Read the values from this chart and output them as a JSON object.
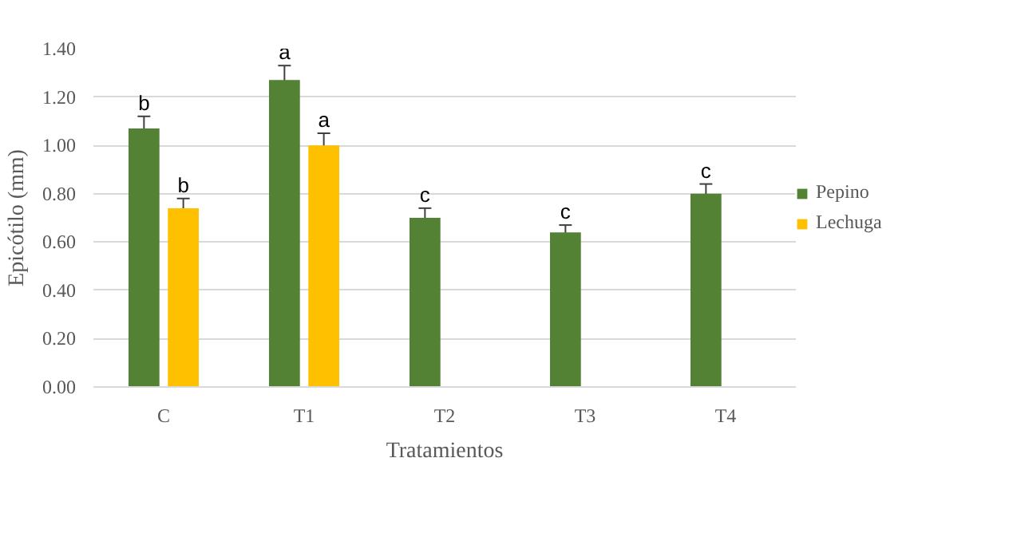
{
  "chart_data": {
    "type": "bar",
    "xlabel": "Tratamientos",
    "ylabel": "Epicótilo (mm)",
    "categories": [
      "C",
      "T1",
      "T2",
      "T3",
      "T4"
    ],
    "series": [
      {
        "name": "Pepino",
        "color": "#548235",
        "values": [
          1.07,
          1.27,
          0.7,
          0.64,
          0.8
        ],
        "errors": [
          0.05,
          0.06,
          0.04,
          0.03,
          0.04
        ]
      },
      {
        "name": "Lechuga",
        "color": "#ffc000",
        "values": [
          0.74,
          1.0,
          null,
          null,
          null
        ],
        "errors": [
          0.04,
          0.05,
          null,
          null,
          null
        ]
      }
    ],
    "ylim": [
      0,
      1.4
    ],
    "yticks": [
      {
        "value": 0,
        "label": "0.00"
      },
      {
        "value": 0.2,
        "label": "0.20"
      },
      {
        "value": 0.4,
        "label": "0.40"
      },
      {
        "value": 0.6,
        "label": "0.60"
      },
      {
        "value": 0.8,
        "label": "0.80"
      },
      {
        "value": 1.0,
        "label": "1.00"
      },
      {
        "value": 1.2,
        "label": "1.20"
      },
      {
        "value": 1.4,
        "label": "1.40"
      }
    ],
    "grid": "y",
    "legend": "right",
    "annotations": [
      {
        "text": "b",
        "x": "C",
        "y": 1.07
      },
      {
        "text": "b",
        "x": "C",
        "y": 0.74
      },
      {
        "text": "a",
        "x": "T1",
        "y": 1.27
      },
      {
        "text": "a",
        "x": "T1",
        "y": 1.0
      },
      {
        "text": "c",
        "x": "T2",
        "y": 0.7
      },
      {
        "text": "c",
        "x": "T3",
        "y": 0.64
      },
      {
        "text": "c",
        "x": "T4",
        "y": 0.8
      }
    ]
  }
}
